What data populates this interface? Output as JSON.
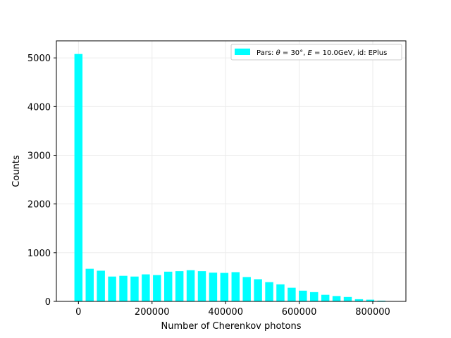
{
  "chart_data": {
    "type": "bar",
    "xlabel": "Number of Cherenkov photons",
    "ylabel": "Counts",
    "xlim": [
      -60000,
      890000
    ],
    "ylim": [
      0,
      5350
    ],
    "bin_width": 30500,
    "x": [
      0,
      30500,
      61000,
      91500,
      122000,
      152500,
      183000,
      213500,
      244000,
      274500,
      305000,
      335500,
      366000,
      396500,
      427000,
      457500,
      488000,
      518500,
      549000,
      579500,
      610000,
      640500,
      671000,
      701500,
      732000,
      762500,
      793000,
      823500
    ],
    "values": [
      5080,
      670,
      630,
      510,
      525,
      510,
      555,
      540,
      610,
      620,
      640,
      620,
      590,
      585,
      600,
      500,
      455,
      395,
      350,
      280,
      220,
      190,
      135,
      110,
      90,
      45,
      35,
      15
    ],
    "xticks": [
      0,
      200000,
      400000,
      600000,
      800000
    ],
    "xtick_labels": [
      "0",
      "200000",
      "400000",
      "600000",
      "800000"
    ],
    "yticks": [
      0,
      1000,
      2000,
      3000,
      4000,
      5000
    ],
    "ytick_labels": [
      "0",
      "1000",
      "2000",
      "3000",
      "4000",
      "5000"
    ],
    "grid": true,
    "legend": {
      "position": "top-right",
      "entries": [
        {
          "prefix": "Pars: ",
          "theta_sym": "θ",
          "theta_val": " = 30°, ",
          "energy_sym": "E",
          "energy_val": " = 10.0GeV, id: EPlus"
        }
      ]
    },
    "colors": {
      "bar": "#00ffff",
      "grid": "#ebebeb",
      "axis": "#000000"
    }
  }
}
